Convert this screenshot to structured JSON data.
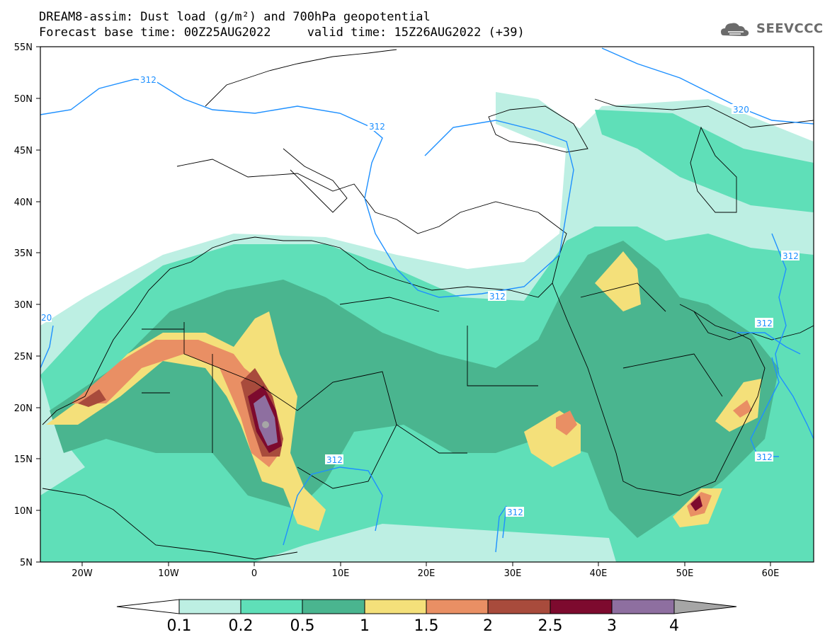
{
  "header": {
    "title_line1": "DREAM8-assim: Dust load (g/m²) and 700hPa geopotential",
    "title_line2": "Forecast base time: 00Z25AUG2022     valid time: 15Z26AUG2022 (+39)"
  },
  "logo": {
    "text": "SEEVCCC",
    "icon": "cloud-logo-icon"
  },
  "map": {
    "lon_labels": [
      "20W",
      "10W",
      "0",
      "10E",
      "20E",
      "30E",
      "40E",
      "50E",
      "60E"
    ],
    "lat_labels": [
      "55N",
      "50N",
      "45N",
      "40N",
      "35N",
      "30N",
      "25N",
      "20N",
      "15N",
      "10N",
      "5N"
    ],
    "contour_labels": [
      "312",
      "312",
      "320",
      "312",
      "312",
      "312",
      "312",
      "312",
      "312",
      "20"
    ]
  },
  "colorbar": {
    "ticks": [
      "0.1",
      "0.2",
      "0.5",
      "1",
      "1.5",
      "2",
      "2.5",
      "3",
      "4"
    ],
    "colors": [
      "#bdefe3",
      "#5fdfb8",
      "#4ab58f",
      "#f4e07a",
      "#e98f64",
      "#a84b3c",
      "#7d0a2e",
      "#8e6fa0",
      "#a6a6a6"
    ]
  }
}
